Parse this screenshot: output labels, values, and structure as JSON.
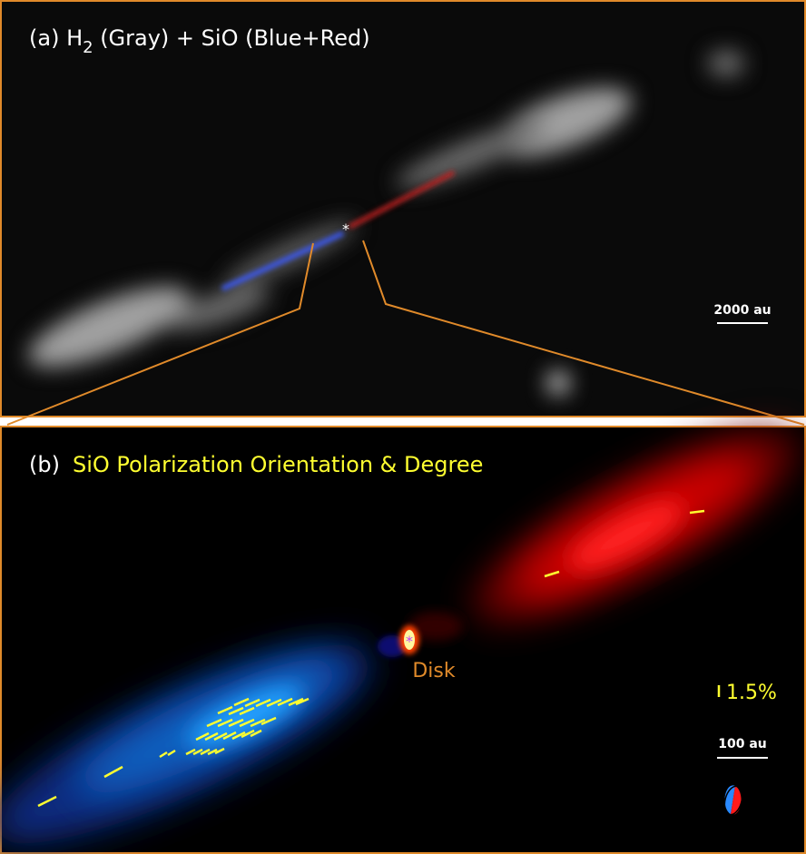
{
  "panel_a": {
    "title": {
      "prefix": "(a) H",
      "subscript": "2",
      "suffix": " (Gray) + SiO (Blue+Red)"
    },
    "scale_bar": "2000 au"
  },
  "panel_b": {
    "label": "(b)",
    "title": "SiO Polarization Orientation & Degree",
    "disk_label": "Disk",
    "pol_scale": "1.5%",
    "scale_bar": "100 au"
  }
}
